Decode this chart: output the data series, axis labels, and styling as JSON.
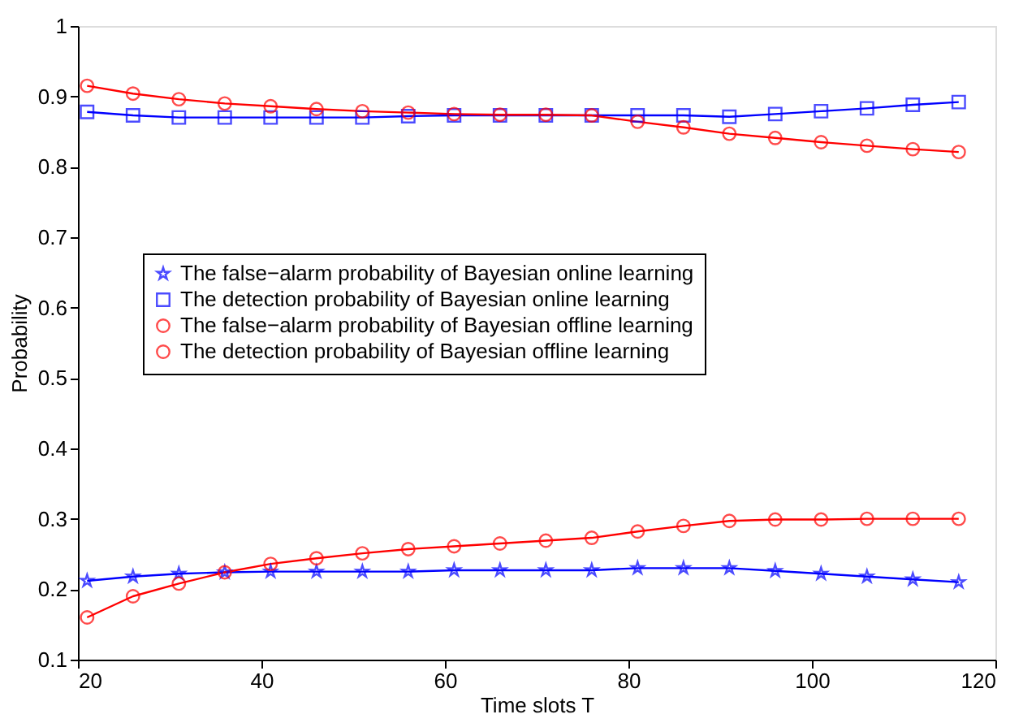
{
  "chart_data": {
    "type": "line",
    "xlabel": "Time slots T",
    "ylabel": "Probability",
    "x": [
      21,
      26,
      31,
      36,
      41,
      46,
      51,
      56,
      61,
      66,
      71,
      76,
      81,
      86,
      91,
      96,
      101,
      106,
      111,
      116
    ],
    "xlim": [
      20,
      120
    ],
    "xticks": [
      20,
      40,
      60,
      80,
      100,
      120
    ],
    "ylim": [
      0.1,
      1
    ],
    "yticks": [
      0.1,
      0.2,
      0.3,
      0.4,
      0.5,
      0.6,
      0.7,
      0.8,
      0.9,
      1
    ],
    "grid": false,
    "legend": "left",
    "line_style": "solid",
    "series": [
      {
        "name": "The false−alarm probability of Bayesian online learning",
        "color": "#0000ff",
        "marker": "star",
        "values": [
          0.212,
          0.218,
          0.222,
          0.224,
          0.225,
          0.225,
          0.225,
          0.225,
          0.227,
          0.227,
          0.227,
          0.227,
          0.23,
          0.23,
          0.23,
          0.226,
          0.222,
          0.218,
          0.214,
          0.21
        ]
      },
      {
        "name": "The detection probability of Bayesian online learning",
        "color": "#0000ff",
        "marker": "square",
        "values": [
          0.878,
          0.873,
          0.87,
          0.87,
          0.87,
          0.87,
          0.87,
          0.872,
          0.873,
          0.873,
          0.873,
          0.873,
          0.873,
          0.873,
          0.871,
          0.875,
          0.879,
          0.883,
          0.888,
          0.892
        ]
      },
      {
        "name": "The false−alarm probability of Bayesian offline learning",
        "color": "#ff0000",
        "marker": "circle",
        "values": [
          0.16,
          0.19,
          0.208,
          0.224,
          0.236,
          0.244,
          0.251,
          0.257,
          0.261,
          0.265,
          0.269,
          0.273,
          0.282,
          0.29,
          0.297,
          0.299,
          0.299,
          0.3,
          0.3,
          0.3
        ]
      },
      {
        "name": "The detection probability of Bayesian offline learning",
        "color": "#ff0000",
        "marker": "circle",
        "values": [
          0.915,
          0.904,
          0.896,
          0.89,
          0.886,
          0.882,
          0.879,
          0.877,
          0.875,
          0.874,
          0.874,
          0.873,
          0.864,
          0.856,
          0.847,
          0.841,
          0.835,
          0.83,
          0.825,
          0.821
        ]
      }
    ]
  }
}
